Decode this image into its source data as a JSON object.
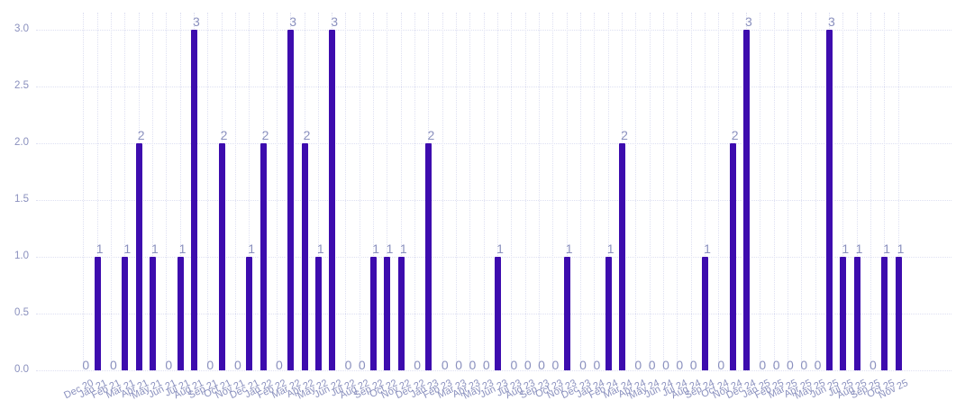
{
  "chart_data": {
    "type": "bar",
    "title": "",
    "xlabel": "",
    "ylabel": "",
    "categories": [
      "Dec 20",
      "Jan 21",
      "Feb 21",
      "Mar 21",
      "Apr 21",
      "May 21",
      "Jun 21",
      "Jul 21",
      "Aug 21",
      "Sep 21",
      "Oct 21",
      "Nov 21",
      "Dec 21",
      "Jan 22",
      "Feb 22",
      "Mar 22",
      "Apr 22",
      "May 22",
      "Jun 22",
      "Jul 22",
      "Aug 22",
      "Sep 22",
      "Oct 22",
      "Nov 22",
      "Dec 22",
      "Jan 23",
      "Feb 23",
      "Mar 23",
      "Apr 23",
      "May 23",
      "Jun 23",
      "Jul 23",
      "Aug 23",
      "Sep 23",
      "Oct 23",
      "Nov 23",
      "Dec 23",
      "Jan 24",
      "Feb 24",
      "Mar 24",
      "Apr 24",
      "May 24",
      "Jun 24",
      "Jul 24",
      "Aug 24",
      "Sep 24",
      "Oct 24",
      "Nov 24",
      "Dec 24",
      "Jan 25",
      "Feb 25",
      "Mar 25",
      "Apr 25",
      "May 25",
      "Jun 25",
      "Jul 25",
      "Aug 25",
      "Sep 25",
      "Oct 25",
      "Nov 25"
    ],
    "values": [
      0,
      1,
      0,
      1,
      2,
      1,
      0,
      1,
      3,
      0,
      2,
      0,
      1,
      2,
      0,
      3,
      2,
      1,
      3,
      0,
      0,
      1,
      1,
      1,
      0,
      2,
      0,
      0,
      0,
      0,
      1,
      0,
      0,
      0,
      0,
      1,
      0,
      0,
      1,
      2,
      0,
      0,
      0,
      0,
      0,
      1,
      0,
      2,
      3,
      0,
      0,
      0,
      0,
      0,
      3,
      1,
      1,
      0,
      1,
      1
    ],
    "yticks": [
      "0.0",
      "0.5",
      "1.0",
      "1.5",
      "2.0",
      "2.5",
      "3.0"
    ],
    "ylim": [
      0,
      3.0
    ],
    "grid": "dotted horizontal and vertical gridlines",
    "legend": "none",
    "value_labels": "numeric value shown above each bar, zeros shown at baseline",
    "colors": {
      "bar": "#3d0cae",
      "labels": "#8a90be",
      "grid": "#dee0f2",
      "background": "#ffffff"
    }
  }
}
